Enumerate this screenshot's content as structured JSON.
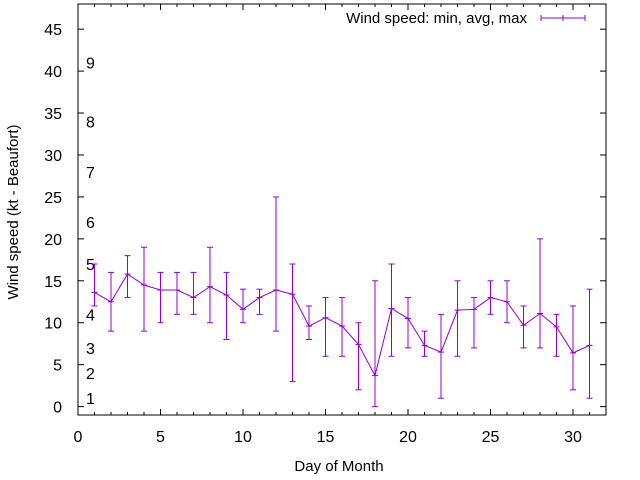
{
  "chart_data": {
    "type": "line",
    "title": "",
    "xlabel": "Day of Month",
    "ylabel": "Wind speed (kt - Beaufort)",
    "xlim": [
      0,
      32
    ],
    "ylim": [
      -1,
      48
    ],
    "xticks": [
      0,
      5,
      10,
      15,
      20,
      25,
      30
    ],
    "yticks": [
      0,
      5,
      10,
      15,
      20,
      25,
      30,
      35,
      40,
      45
    ],
    "grid": false,
    "legend_position": "top-right",
    "series_color": "#9400d3",
    "series": [
      {
        "name": "Wind speed: min, avg, max",
        "x": [
          1,
          2,
          3,
          4,
          5,
          6,
          7,
          8,
          9,
          10,
          11,
          12,
          13,
          14,
          15,
          16,
          17,
          18,
          19,
          20,
          21,
          22,
          23,
          24,
          25,
          26,
          27,
          28,
          29,
          30,
          31
        ],
        "avg": [
          13.6,
          12.5,
          15.8,
          14.5,
          13.9,
          13.9,
          13.0,
          14.3,
          13.3,
          11.6,
          13.0,
          13.9,
          13.4,
          9.6,
          10.6,
          9.6,
          7.4,
          3.7,
          11.7,
          10.5,
          7.3,
          6.5,
          11.5,
          11.6,
          13.0,
          12.5,
          9.7,
          11.1,
          9.5,
          6.4,
          7.3
        ],
        "min": [
          12,
          9,
          13,
          9,
          10,
          11,
          11,
          10,
          8,
          10,
          11,
          9,
          3,
          8,
          6,
          6,
          2,
          0,
          6,
          7,
          6,
          1,
          6,
          7,
          11,
          10,
          7,
          7,
          6,
          2,
          1
        ],
        "max": [
          17,
          16,
          18,
          19,
          16,
          16,
          16,
          19,
          16,
          14,
          14,
          25,
          17,
          12,
          13,
          13,
          10,
          15,
          17,
          13,
          9,
          11,
          15,
          13,
          15,
          15,
          12,
          20,
          11,
          12,
          14
        ]
      }
    ],
    "beaufort_labels": [
      {
        "label": "1",
        "y": 1
      },
      {
        "label": "2",
        "y": 4
      },
      {
        "label": "3",
        "y": 7
      },
      {
        "label": "4",
        "y": 11
      },
      {
        "label": "5",
        "y": 17
      },
      {
        "label": "6",
        "y": 22
      },
      {
        "label": "7",
        "y": 28
      },
      {
        "label": "8",
        "y": 34
      },
      {
        "label": "9",
        "y": 41
      }
    ]
  }
}
